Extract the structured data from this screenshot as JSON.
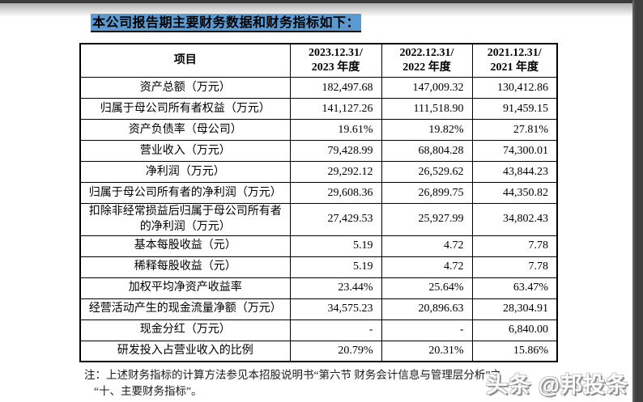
{
  "page": {
    "title": "本公司报告期主要财务数据和财务指标如下："
  },
  "colors": {
    "title_highlight": "#5b9ad0",
    "screen_edge": "#3f3f3f"
  },
  "table": {
    "headers": {
      "item": "项目",
      "col2023": "2023.12.31/\n2023 年度",
      "col2022": "2022.12.31/\n2022 年度",
      "col2021": "2021.12.31/\n2021 年度"
    },
    "rows": [
      {
        "label": "资产总额（万元）",
        "y2023": "182,497.68",
        "y2022": "147,009.32",
        "y2021": "130,412.86"
      },
      {
        "label": "归属于母公司所有者权益（万元）",
        "y2023": "141,127.26",
        "y2022": "111,518.90",
        "y2021": "91,459.15"
      },
      {
        "label": "资产负债率（母公司）",
        "y2023": "19.61%",
        "y2022": "19.82%",
        "y2021": "27.81%"
      },
      {
        "label": "营业收入（万元）",
        "y2023": "79,428.99",
        "y2022": "68,804.28",
        "y2021": "74,300.01"
      },
      {
        "label": "净利润（万元）",
        "y2023": "29,292.12",
        "y2022": "26,529.62",
        "y2021": "43,844.23"
      },
      {
        "label": "归属于母公司所有者的净利润（万元）",
        "y2023": "29,608.36",
        "y2022": "26,899.75",
        "y2021": "44,350.82"
      },
      {
        "label": "扣除非经常损益后归属于母公司所有者的净利润（万元）",
        "y2023": "27,429.53",
        "y2022": "25,927.99",
        "y2021": "34,802.43"
      },
      {
        "label": "基本每股收益（元）",
        "y2023": "5.19",
        "y2022": "4.72",
        "y2021": "7.78"
      },
      {
        "label": "稀释每股收益（元）",
        "y2023": "5.19",
        "y2022": "4.72",
        "y2021": "7.78"
      },
      {
        "label": "加权平均净资产收益率",
        "y2023": "23.44%",
        "y2022": "25.64%",
        "y2021": "63.47%"
      },
      {
        "label": "经营活动产生的现金流量净额（万元）",
        "y2023": "34,575.23",
        "y2022": "20,896.63",
        "y2021": "28,304.91"
      },
      {
        "label": "现金分红（万元）",
        "y2023": "-",
        "y2022": "-",
        "y2021": "6,840.00"
      },
      {
        "label": "研发投入占营业收入的比例",
        "y2023": "20.79%",
        "y2022": "20.31%",
        "y2021": "15.86%"
      }
    ]
  },
  "footnote": {
    "line1": "注：上述财务指标的计算方法参见本招股说明书“第六节 财务会计信息与管理层分析”之",
    "line2": "“十、主要财务指标”。"
  },
  "watermark": "头条 @邦投条"
}
